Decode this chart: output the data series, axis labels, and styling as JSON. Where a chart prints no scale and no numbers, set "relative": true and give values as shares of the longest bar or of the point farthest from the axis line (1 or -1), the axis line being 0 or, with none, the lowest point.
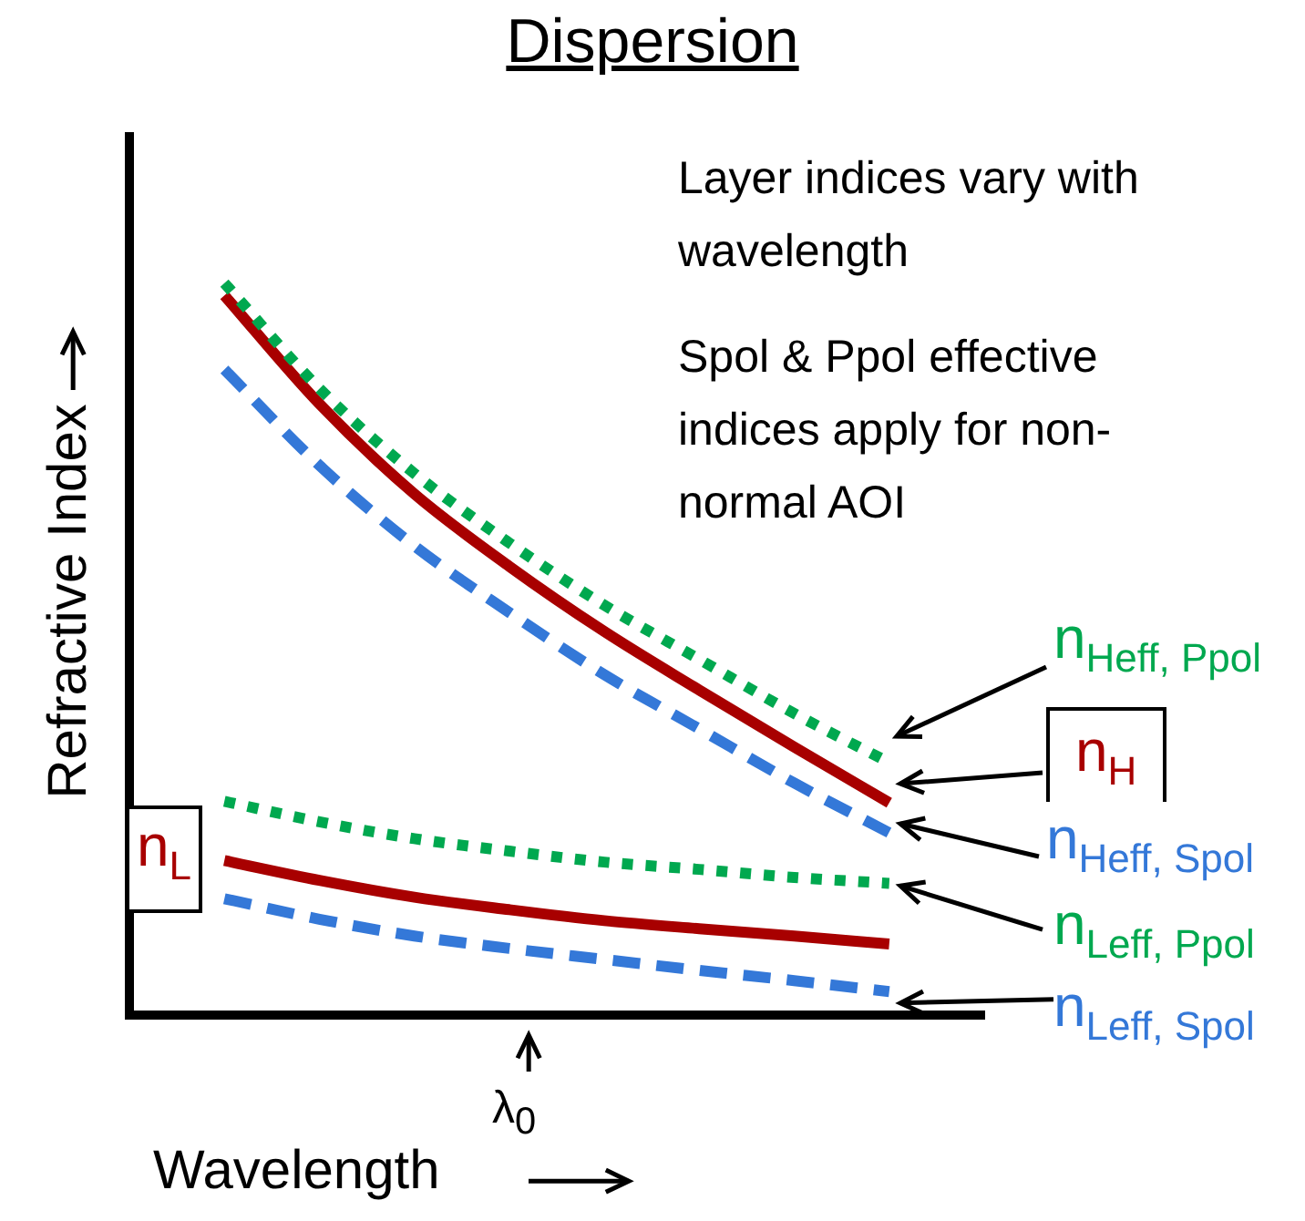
{
  "chart_data": {
    "type": "line",
    "title": "Dispersion",
    "xlabel": "Wavelength",
    "ylabel": "Refractive Index",
    "relative": true,
    "categories": [
      null,
      null,
      null,
      null,
      null,
      null,
      null,
      null,
      null,
      null
    ],
    "series": [
      {
        "name": "n$_{Heff, Ppol}$",
        "color": "#00a84f",
        "line_style": "dotted",
        "values": [
          null,
          1.0,
          0.856,
          0.74,
          0.645,
          0.56,
          0.486,
          0.412,
          0.345,
          null
        ]
      },
      {
        "name": "n$_{H}$",
        "color": "#a80000",
        "line_style": "solid",
        "values": [
          null,
          0.983,
          0.835,
          0.712,
          0.613,
          0.524,
          0.444,
          0.366,
          0.29,
          null
        ]
      },
      {
        "name": "n$_{Heff, Spol}$",
        "color": "#3478d8",
        "line_style": "dashed",
        "values": [
          null,
          0.882,
          0.751,
          0.641,
          0.55,
          0.465,
          0.391,
          0.317,
          0.249,
          null
        ]
      },
      {
        "name": "n$_{Leff, Ppol}$",
        "color": "#00a84f",
        "line_style": "dotted",
        "values": [
          null,
          0.292,
          0.264,
          0.241,
          0.224,
          0.209,
          0.199,
          0.188,
          0.18,
          null
        ]
      },
      {
        "name": "n$_{L}$",
        "color": "#a80000",
        "line_style": "solid",
        "values": [
          null,
          0.211,
          0.184,
          0.161,
          0.144,
          0.129,
          0.118,
          0.108,
          0.097,
          null
        ]
      },
      {
        "name": "n$_{Leff, Spol}$",
        "color": "#3478d8",
        "line_style": "dashed",
        "values": [
          null,
          0.159,
          0.131,
          0.108,
          0.091,
          0.076,
          0.061,
          0.047,
          0.032,
          null
        ]
      }
    ],
    "annotations": [
      "Layer indices vary with wavelength",
      "Spol & Ppol effective indices apply for non-normal AOI",
      "λ$_{0}$"
    ]
  }
}
